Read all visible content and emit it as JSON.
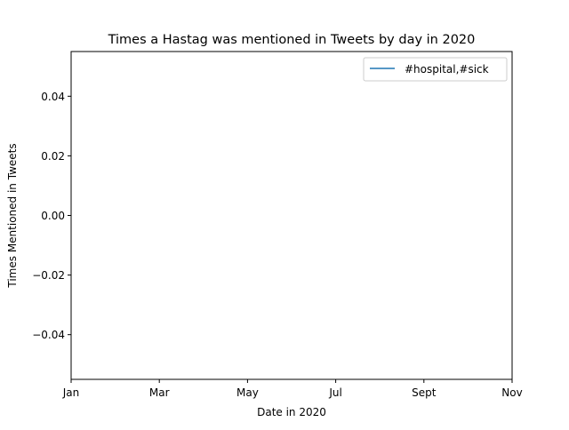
{
  "chart_data": {
    "type": "line",
    "title": "Times a Hastag was mentioned in Tweets by day in 2020",
    "xlabel": "Date in 2020",
    "ylabel": "Times Mentioned in Tweets",
    "x_ticks": [
      "Jan",
      "Mar",
      "May",
      "Jul",
      "Sept",
      "Nov"
    ],
    "y_ticks": [
      "0.04",
      "0.02",
      "0.00",
      "−0.02",
      "−0.04"
    ],
    "y_tick_values": [
      0.04,
      0.02,
      0.0,
      -0.02,
      -0.04
    ],
    "ylim": [
      -0.055,
      0.055
    ],
    "grid": false,
    "legend_position": "top-right",
    "series": [
      {
        "name": "#hospital,#sick",
        "color": "#1f77b4",
        "x": [],
        "values": []
      }
    ]
  }
}
